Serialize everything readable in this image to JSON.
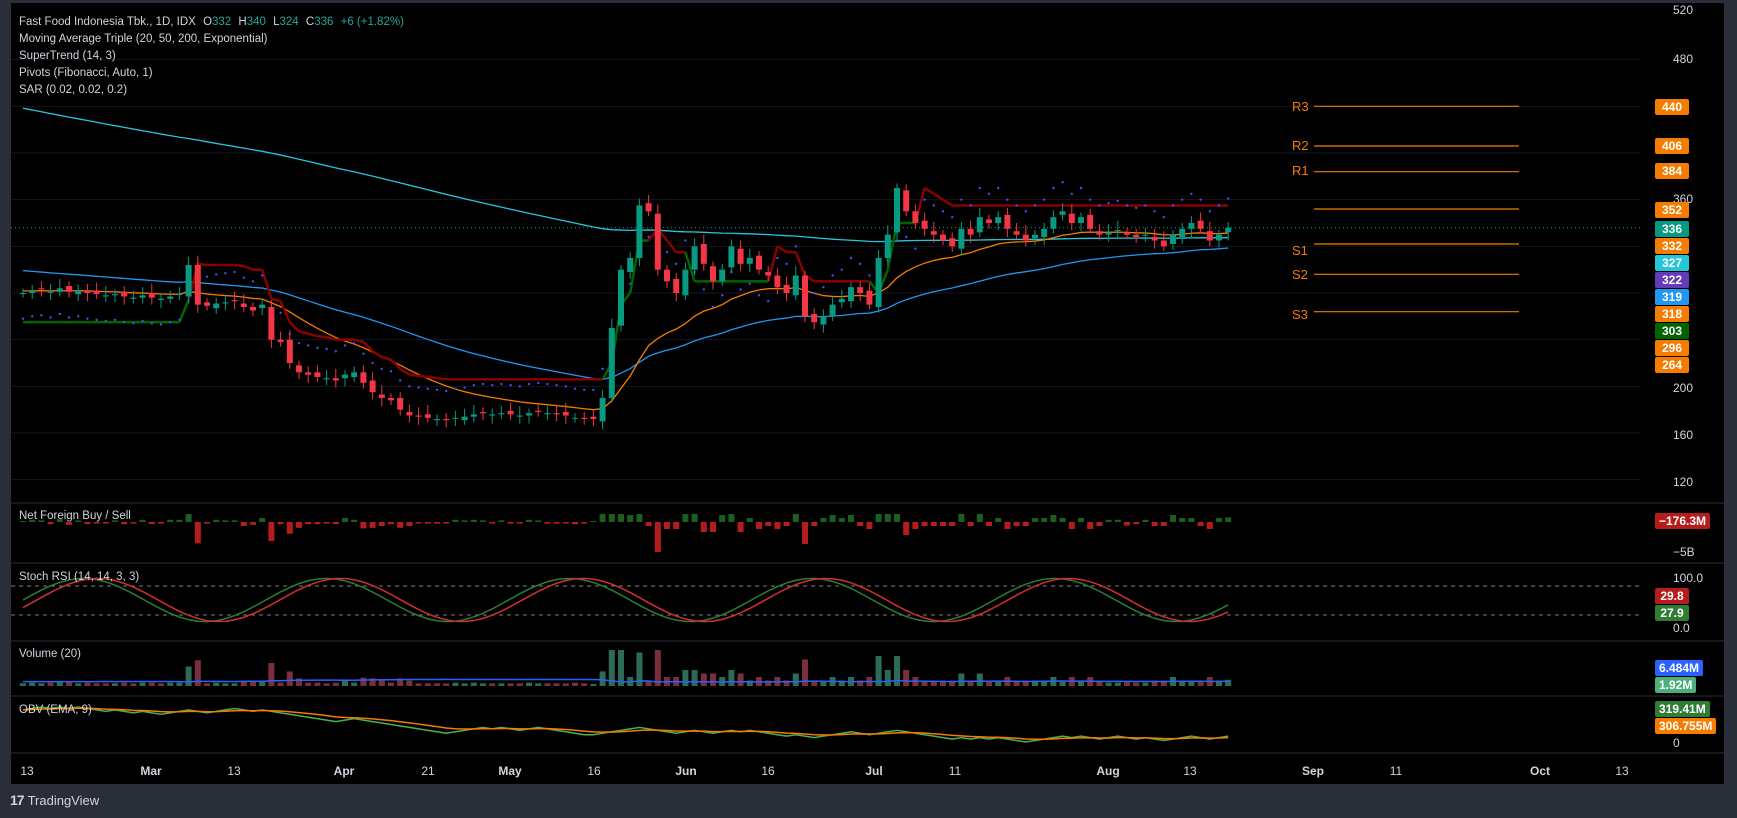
{
  "legend": {
    "symbol": "Fast Food Indonesia Tbk., 1D, IDX",
    "o_key": "O",
    "o_val": "332",
    "h_key": "H",
    "h_val": "340",
    "l_key": "L",
    "l_val": "324",
    "c_key": "C",
    "c_val": "336",
    "change": "+6 (+1.82%)",
    "indicators": [
      "Moving Average Triple (20, 50, 200, Exponential)",
      "SuperTrend (14, 3)",
      "Pivots (Fibonacci, Auto, 1)",
      "SAR (0.02, 0.02, 0.2)"
    ]
  },
  "pane_titles": {
    "nfbs": "Net Foreign Buy / Sell",
    "stoch": "Stoch RSI (14, 14, 3, 3)",
    "volume": "Volume (20)",
    "obv": "OBV (EMA, 9)"
  },
  "price_axis": [
    "520",
    "480",
    "360",
    "200",
    "160",
    "120"
  ],
  "pivots": {
    "R3": 440,
    "R2": 406,
    "R1": 384,
    "S1": 322,
    "S2": 296,
    "S3": 264,
    "P": 352
  },
  "pivot_names": [
    "R3",
    "R2",
    "R1",
    "S1",
    "S2",
    "S3"
  ],
  "badges": [
    {
      "text": "440",
      "color": "#f57c00"
    },
    {
      "text": "406",
      "color": "#f57c00"
    },
    {
      "text": "384",
      "color": "#f57c00"
    },
    {
      "text": "352",
      "color": "#f57c00"
    },
    {
      "text": "336",
      "color": "#089981"
    },
    {
      "text": "332",
      "color": "#f57c00"
    },
    {
      "text": "327",
      "color": "#26c6da"
    },
    {
      "text": "322",
      "color": "#673ab7"
    },
    {
      "text": "319",
      "color": "#2196f3"
    },
    {
      "text": "318",
      "color": "#f57c00"
    },
    {
      "text": "303",
      "color": "#006400"
    },
    {
      "text": "296",
      "color": "#f57c00"
    },
    {
      "text": "264",
      "color": "#f57c00"
    }
  ],
  "nfbs_badge": "−176.3M",
  "nfbs_axis": "−5B",
  "stoch_axis": [
    "100.0",
    "0.0"
  ],
  "stoch_badges": [
    "29.8",
    "27.9"
  ],
  "volume_badges": [
    "6.484M",
    "1.92M"
  ],
  "obv_badges": [
    "319.41M",
    "306.755M"
  ],
  "obv_axis": "0",
  "x_axis": [
    {
      "label": "13",
      "bold": false
    },
    {
      "label": "Mar",
      "bold": true
    },
    {
      "label": "13",
      "bold": false
    },
    {
      "label": "Apr",
      "bold": true
    },
    {
      "label": "21",
      "bold": false
    },
    {
      "label": "May",
      "bold": true
    },
    {
      "label": "16",
      "bold": false
    },
    {
      "label": "Jun",
      "bold": true
    },
    {
      "label": "16",
      "bold": false
    },
    {
      "label": "Jul",
      "bold": true
    },
    {
      "label": "11",
      "bold": false
    },
    {
      "label": "Aug",
      "bold": true
    },
    {
      "label": "13",
      "bold": false
    },
    {
      "label": "Sep",
      "bold": true
    },
    {
      "label": "11",
      "bold": false
    },
    {
      "label": "Oct",
      "bold": true
    },
    {
      "label": "13",
      "bold": false
    }
  ],
  "brand": "TradingView",
  "colors": {
    "up": "#089981",
    "down": "#f23645",
    "ema20": "#f57c00",
    "ema50": "#2196f3",
    "ema200": "#26c6da",
    "pivot": "#f57c00",
    "st_up": "#006400",
    "st_down": "#8b0000",
    "sar": "#3f51f5"
  },
  "chart_data": {
    "type": "candlestick",
    "title": "Fast Food Indonesia Tbk., 1D, IDX",
    "ylim": [
      100,
      520
    ],
    "x_start": "Feb 13",
    "closes": [
      280,
      282,
      283,
      281,
      284,
      281,
      282,
      280,
      279,
      278,
      279,
      277,
      276,
      278,
      276,
      275,
      277,
      279,
      304,
      270,
      269,
      271,
      272,
      273,
      268,
      265,
      270,
      240,
      238,
      220,
      212,
      210,
      208,
      207,
      205,
      210,
      212,
      203,
      195,
      190,
      188,
      180,
      175,
      174,
      173,
      172,
      171,
      173,
      174,
      176,
      177,
      176,
      177,
      176,
      175,
      177,
      178,
      177,
      176,
      175,
      173,
      172,
      172,
      190,
      250,
      300,
      310,
      355,
      350,
      300,
      290,
      280,
      300,
      320,
      305,
      290,
      300,
      320,
      305,
      310,
      300,
      295,
      285,
      280,
      295,
      260,
      255,
      260,
      270,
      275,
      285,
      280,
      270,
      310,
      330,
      370,
      350,
      340,
      335,
      330,
      325,
      320,
      335,
      330,
      345,
      340,
      345,
      335,
      330,
      325,
      330,
      335,
      345,
      350,
      340,
      345,
      335,
      330,
      332,
      334,
      330,
      328,
      330,
      325,
      320,
      330,
      335,
      340,
      335,
      325,
      330,
      336
    ],
    "series": [
      {
        "name": "EMA 20"
      },
      {
        "name": "EMA 50"
      },
      {
        "name": "EMA 200"
      },
      {
        "name": "SuperTrend"
      },
      {
        "name": "SAR"
      }
    ]
  }
}
